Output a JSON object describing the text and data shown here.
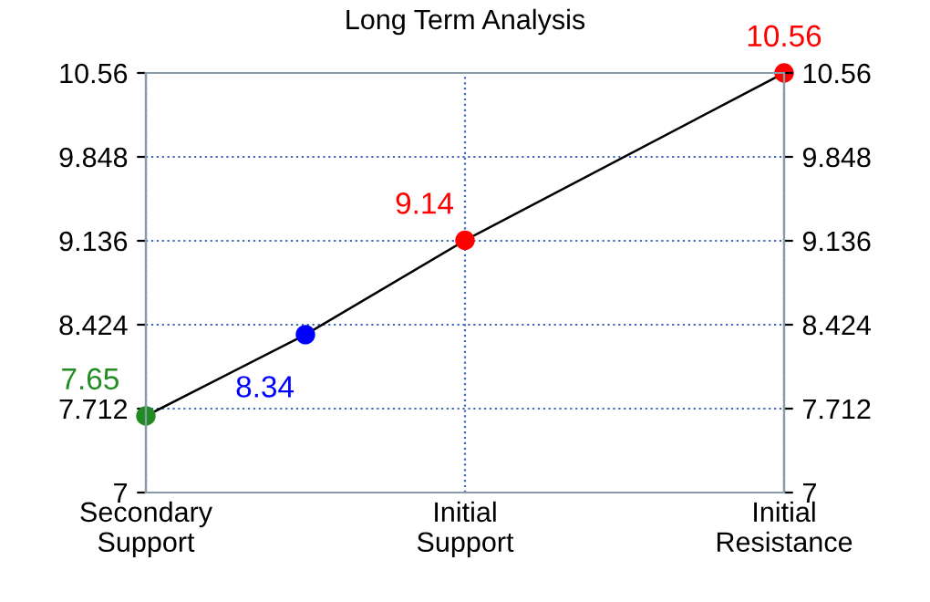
{
  "chart_data": {
    "type": "line",
    "title": "Long Term Analysis",
    "categories": [
      "Secondary\nSupport",
      null,
      "Initial\nSupport",
      null,
      "Initial\nResistance"
    ],
    "series": [
      {
        "color": "#000000",
        "colors": [
          "#228b22",
          "#0000ff",
          "#ff0000",
          null,
          "#ff0000"
        ],
        "values": [
          7.65,
          8.34,
          9.14,
          null,
          10.56
        ]
      }
    ],
    "ylim": [
      7,
      10.56
    ],
    "yticks": [
      7,
      7.712,
      8.424,
      9.136,
      9.848,
      10.56
    ],
    "y2lim": [
      7,
      10.56
    ],
    "y2ticks": [
      7,
      7.712,
      8.424,
      9.136,
      9.848,
      10.56
    ],
    "grid": true,
    "marker": "circle",
    "line_style": "solid",
    "data_labels": true
  }
}
